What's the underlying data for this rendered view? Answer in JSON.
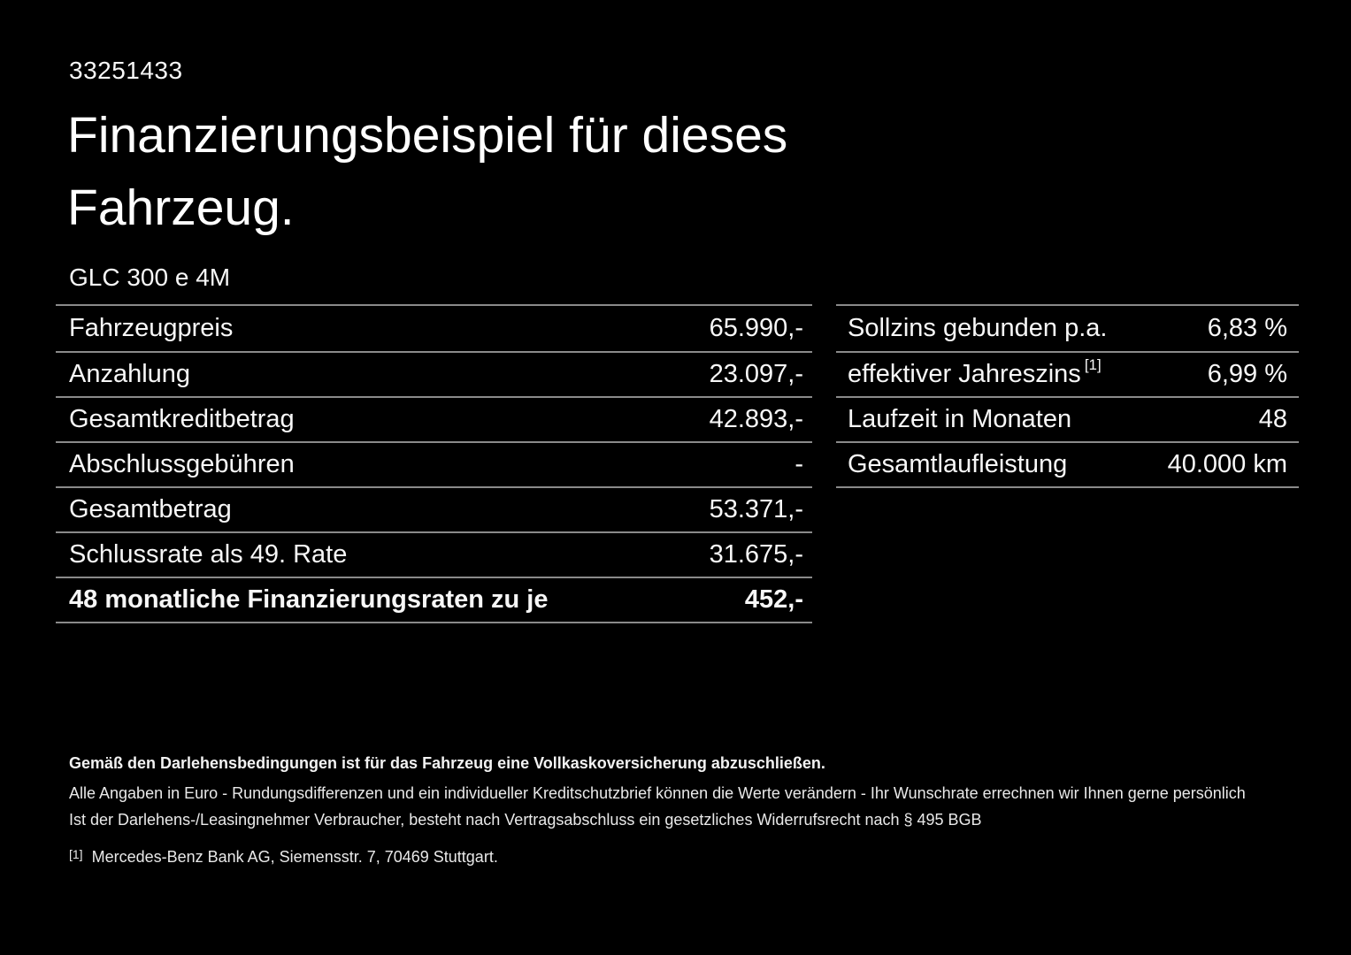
{
  "page": {
    "doc_id": "33251433",
    "title_line1": "Finanzierungsbeispiel für dieses",
    "title_line2": "Fahrzeug.",
    "model": "GLC 300 e 4M"
  },
  "left_table": {
    "rows": [
      {
        "label": "Fahrzeugpreis",
        "value": "65.990,-",
        "bold": false
      },
      {
        "label": "Anzahlung",
        "value": "23.097,-",
        "bold": false
      },
      {
        "label": "Gesamtkreditbetrag",
        "value": "42.893,-",
        "bold": false
      },
      {
        "label": "Abschlussgebühren",
        "value": "-",
        "bold": false
      },
      {
        "label": "Gesamtbetrag",
        "value": "53.371,-",
        "bold": false
      },
      {
        "label": "Schlussrate als 49. Rate",
        "value": "31.675,-",
        "bold": false
      },
      {
        "label": "48 monatliche Finanzierungsraten zu je",
        "value": "452,-",
        "bold": true
      }
    ]
  },
  "right_table": {
    "rows": [
      {
        "label": "Sollzins gebunden p.a.",
        "value": "6,83 %",
        "bold": false
      },
      {
        "label": "effektiver Jahreszins",
        "sup": "[1]",
        "value": "6,99 %",
        "bold": false
      },
      {
        "label": "Laufzeit in Monaten",
        "value": "48",
        "bold": false
      },
      {
        "label": "Gesamtlaufleistung",
        "value": "40.000 km",
        "bold": false
      }
    ]
  },
  "footer": {
    "bold_note": "Gemäß den Darlehensbedingungen ist für das Fahrzeug eine Vollkaskoversicherung abzuschließen.",
    "note_line1": "Alle Angaben in Euro - Rundungsdifferenzen und ein individueller Kreditschutzbrief können die Werte verändern - Ihr Wunschrate errechnen wir Ihnen gerne persönlich",
    "note_line2": "Ist der Darlehens-/Leasingnehmer Verbraucher, besteht nach Vertragsabschluss ein gesetzliches Widerrufsrecht nach § 495 BGB",
    "footnote_marker": "[1]",
    "footnote_text": "Mercedes-Benz Bank AG, Siemensstr. 7, 70469 Stuttgart."
  },
  "colors": {
    "background": "#000000",
    "text": "#f7f7f7",
    "divider": "#8a8a8a"
  }
}
